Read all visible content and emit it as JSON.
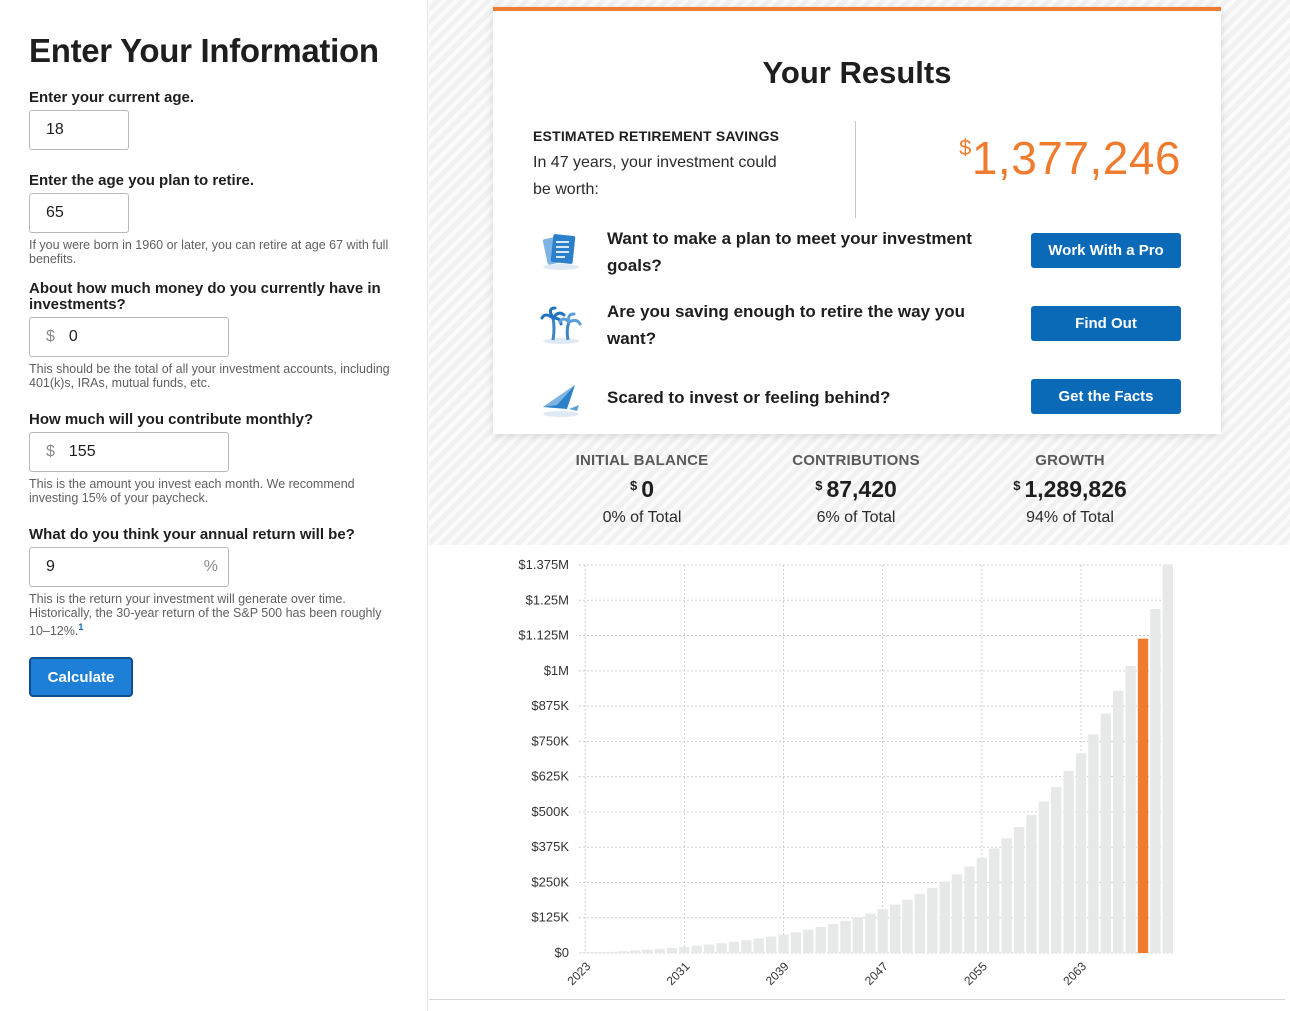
{
  "form": {
    "title": "Enter Your Information",
    "current_age_label": "Enter your current age.",
    "current_age_value": "18",
    "retire_age_label": "Enter the age you plan to retire.",
    "retire_age_value": "65",
    "retire_age_hint": "If you were born in 1960 or later, you can retire at age 67 with full benefits.",
    "current_investments_label": "About how much money do you currently have in investments?",
    "currency_symbol": "$",
    "current_investments_value": "0",
    "current_investments_hint": "This should be the total of all your investment accounts, including 401(k)s, IRAs, mutual funds, etc.",
    "monthly_label": "How much will you contribute monthly?",
    "monthly_value": "155",
    "monthly_hint": "This is the amount you invest each month. We recommend investing 15% of your paycheck.",
    "return_label": "What do you think your annual return will be?",
    "return_value": "9",
    "percent_symbol": "%",
    "return_hint": "This is the return your investment will generate over time. Historically, the 30-year return of the S&P 500 has been roughly 10–12%.",
    "return_hint_footnote": "1",
    "calculate_label": "Calculate"
  },
  "results": {
    "title": "Your Results",
    "estimate_label": "ESTIMATED RETIREMENT SAVINGS",
    "estimate_desc": "In 47 years, your investment could be worth:",
    "estimate_symbol": "$",
    "estimate_amount": "1,377,246",
    "rows": [
      {
        "icon": "document-stack-icon",
        "text": "Want to make a plan to meet your investment goals?",
        "button": "Work With a Pro"
      },
      {
        "icon": "palm-trees-icon",
        "text": "Are you saving enough to retire the way you want?",
        "button": "Find Out"
      },
      {
        "icon": "paper-airplane-icon",
        "text": "Scared to invest or feeling behind?",
        "button": "Get the Facts"
      }
    ]
  },
  "stats": [
    {
      "label": "INITIAL BALANCE",
      "symbol": "$",
      "value": "0",
      "percent": "0% of Total"
    },
    {
      "label": "CONTRIBUTIONS",
      "symbol": "$",
      "value": "87,420",
      "percent": "6% of Total"
    },
    {
      "label": "GROWTH",
      "symbol": "$",
      "value": "1,289,826",
      "percent": "94% of Total"
    }
  ],
  "colors": {
    "accent": "#ef7b2f",
    "button_blue": "#0a6ab8",
    "bar_gray": "#e7e9e9",
    "highlight_bar": "#ef7b2f"
  },
  "chart_data": {
    "type": "bar",
    "x_start": 2023,
    "x_end": 2070,
    "x_tick_labels": [
      "2023",
      "2031",
      "2039",
      "2047",
      "2055",
      "2063"
    ],
    "y_tick_labels": [
      "$0",
      "$125K",
      "$250K",
      "$375K",
      "$500K",
      "$625K",
      "$750K",
      "$875K",
      "$1M",
      "$1.125M",
      "$1.25M",
      "$1.375M"
    ],
    "ylim": [
      0,
      1375000
    ],
    "highlight_year": 2068,
    "values": [
      0,
      1950,
      4090,
      6420,
      8970,
      11750,
      14790,
      18110,
      21730,
      25680,
      30000,
      34720,
      39880,
      45510,
      51660,
      58380,
      65730,
      73760,
      82530,
      92120,
      102600,
      114050,
      126560,
      140230,
      155170,
      171500,
      189340,
      208840,
      230150,
      253440,
      278890,
      306700,
      337090,
      370310,
      406610,
      446280,
      489630,
      537010,
      588790,
      645380,
      707220,
      774800,
      848660,
      929380,
      1017590,
      1113990,
      1219340,
      1377246
    ]
  }
}
